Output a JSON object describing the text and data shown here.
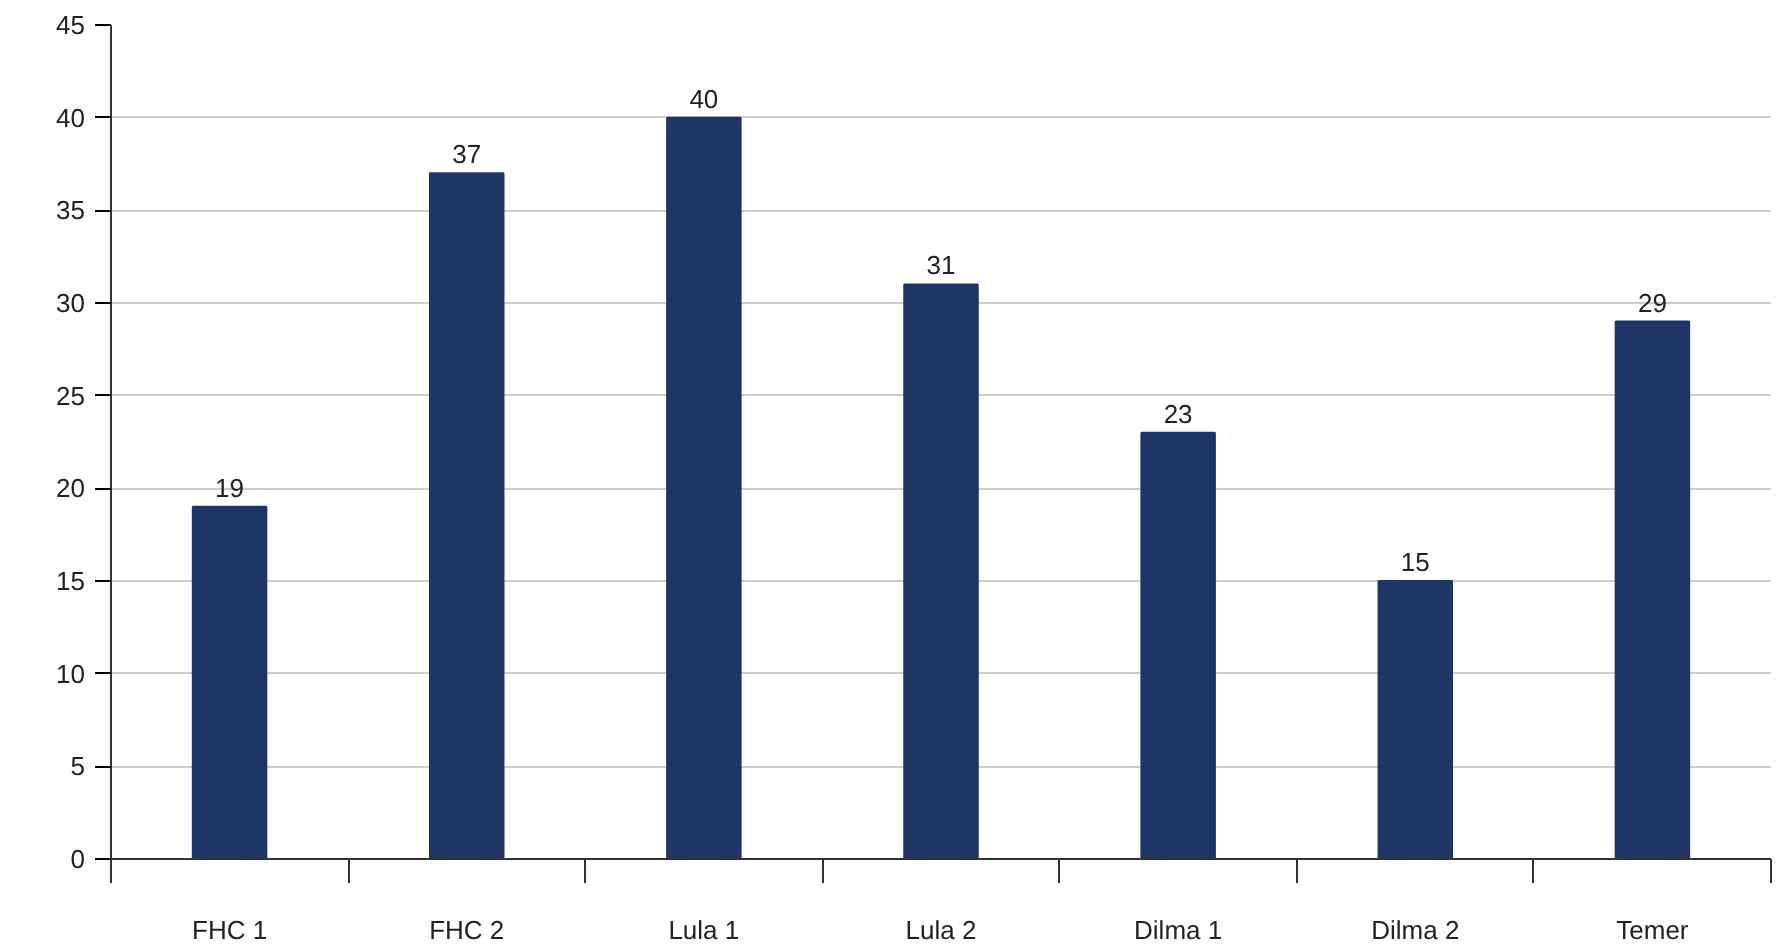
{
  "chart_data": {
    "type": "bar",
    "categories": [
      "FHC 1",
      "FHC 2",
      "Lula 1",
      "Lula 2",
      "Dilma 1",
      "Dilma 2",
      "Temer"
    ],
    "values": [
      19,
      37,
      40,
      31,
      23,
      15,
      29
    ],
    "color": "#1f3566",
    "ylim": [
      0,
      45
    ],
    "yticks": [
      0,
      5,
      10,
      15,
      20,
      25,
      30,
      35,
      40,
      45
    ],
    "grid": "y",
    "data_labels": true
  }
}
